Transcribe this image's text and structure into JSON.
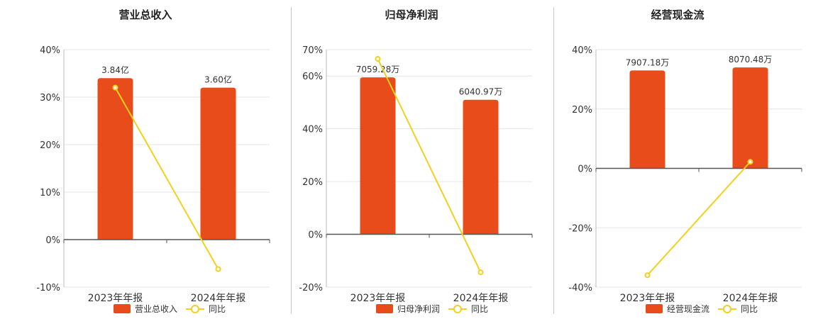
{
  "colors": {
    "bar": "#e84c1a",
    "line": "#f2d01e",
    "grid": "#e6e6e6",
    "axis": "#555555"
  },
  "chart_data": [
    {
      "type": "bar",
      "title": "营业总收入",
      "categories": [
        "2023年年报",
        "2024年年报"
      ],
      "series": [
        {
          "name": "营业总收入",
          "type": "bar",
          "labels": [
            "3.84亿",
            "3.60亿"
          ],
          "values": [
            34,
            32
          ]
        },
        {
          "name": "同比",
          "type": "line",
          "values": [
            32,
            -6.2
          ]
        }
      ],
      "ylim": [
        -10,
        40
      ],
      "yticks": [
        -10,
        0,
        10,
        20,
        30,
        40
      ],
      "ytick_labels": [
        "-10%",
        "0%",
        "10%",
        "20%",
        "30%",
        "40%"
      ],
      "legend": [
        "营业总收入",
        "同比"
      ]
    },
    {
      "type": "bar",
      "title": "归母净利润",
      "categories": [
        "2023年年报",
        "2024年年报"
      ],
      "series": [
        {
          "name": "归母净利润",
          "type": "bar",
          "labels": [
            "7059.28万",
            "6040.97万"
          ],
          "values": [
            59.5,
            51
          ]
        },
        {
          "name": "同比",
          "type": "line",
          "values": [
            66.5,
            -14.4
          ]
        }
      ],
      "ylim": [
        -20,
        70
      ],
      "yticks": [
        -20,
        0,
        20,
        40,
        60,
        70
      ],
      "ytick_labels": [
        "-20%",
        "0%",
        "20%",
        "40%",
        "60%",
        "70%"
      ],
      "legend": [
        "归母净利润",
        "同比"
      ]
    },
    {
      "type": "bar",
      "title": "经营现金流",
      "categories": [
        "2023年年报",
        "2024年年报"
      ],
      "series": [
        {
          "name": "经营现金流",
          "type": "bar",
          "labels": [
            "7907.18万",
            "8070.48万"
          ],
          "values": [
            33,
            34
          ]
        },
        {
          "name": "同比",
          "type": "line",
          "values": [
            -36,
            2.2
          ]
        }
      ],
      "ylim": [
        -40,
        40
      ],
      "yticks": [
        -40,
        -20,
        0,
        20,
        40
      ],
      "ytick_labels": [
        "-40%",
        "-20%",
        "0%",
        "20%",
        "40%"
      ],
      "legend": [
        "经营现金流",
        "同比"
      ]
    }
  ]
}
